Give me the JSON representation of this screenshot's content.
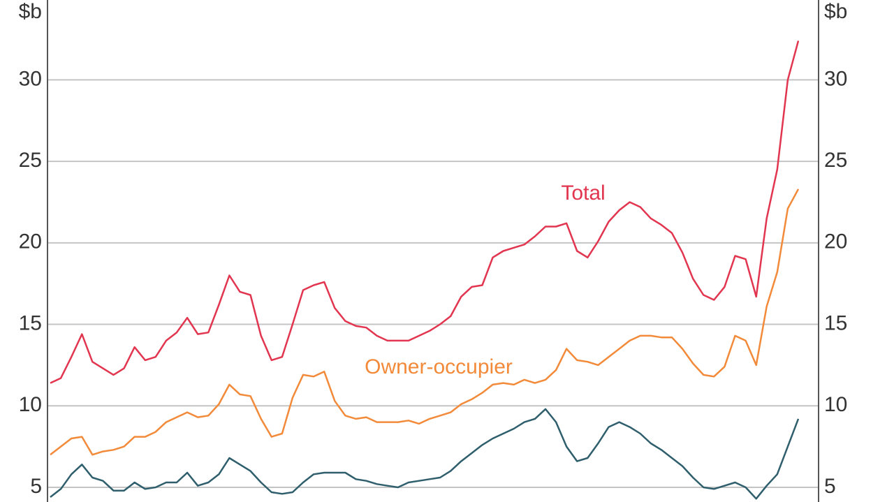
{
  "chart_data": {
    "type": "line",
    "y_unit": "$b",
    "ylim": [
      4.1,
      34.9
    ],
    "yticks": [
      5,
      10,
      15,
      20,
      25,
      30
    ],
    "grid": true,
    "series": [
      {
        "name": "Total",
        "color": "#e2354f",
        "values": [
          11.4,
          11.7,
          13.0,
          14.4,
          12.7,
          12.3,
          11.9,
          12.3,
          13.6,
          12.8,
          13.0,
          14.0,
          14.5,
          15.4,
          14.4,
          14.5,
          16.2,
          18.0,
          17.0,
          16.8,
          14.3,
          12.8,
          13.0,
          15.0,
          17.1,
          17.4,
          17.6,
          16.0,
          15.2,
          14.9,
          14.8,
          14.3,
          14.0,
          14.0,
          14.0,
          14.3,
          14.6,
          15.0,
          15.5,
          16.7,
          17.3,
          17.4,
          19.1,
          19.5,
          19.7,
          19.9,
          20.4,
          21.0,
          21.0,
          21.2,
          19.5,
          19.1,
          20.1,
          21.3,
          22.0,
          22.5,
          22.2,
          21.5,
          21.1,
          20.6,
          19.4,
          17.8,
          16.8,
          16.5,
          17.3,
          19.2,
          19.0,
          16.7,
          21.5,
          24.5,
          30.0,
          32.4
        ]
      },
      {
        "name": "Owner-occupier",
        "color": "#f28a3a",
        "values": [
          7.0,
          7.5,
          8.0,
          8.1,
          7.0,
          7.2,
          7.3,
          7.5,
          8.1,
          8.1,
          8.4,
          9.0,
          9.3,
          9.6,
          9.3,
          9.4,
          10.1,
          11.3,
          10.7,
          10.6,
          9.2,
          8.1,
          8.3,
          10.5,
          11.9,
          11.8,
          12.1,
          10.3,
          9.4,
          9.2,
          9.3,
          9.0,
          9.0,
          9.0,
          9.1,
          8.9,
          9.2,
          9.4,
          9.6,
          10.1,
          10.4,
          10.8,
          11.3,
          11.4,
          11.3,
          11.6,
          11.4,
          11.6,
          12.2,
          13.5,
          12.8,
          12.7,
          12.5,
          13.0,
          13.5,
          14.0,
          14.3,
          14.3,
          14.2,
          14.2,
          13.5,
          12.6,
          11.9,
          11.8,
          12.4,
          14.3,
          14.0,
          12.5,
          16.1,
          18.2,
          22.1,
          23.3
        ]
      },
      {
        "color": "#2f5e6c",
        "values": [
          4.4,
          4.9,
          5.8,
          6.4,
          5.6,
          5.4,
          4.8,
          4.8,
          5.3,
          4.9,
          5.0,
          5.3,
          5.3,
          5.9,
          5.1,
          5.3,
          5.8,
          6.8,
          6.4,
          6.0,
          5.3,
          4.7,
          4.6,
          4.7,
          5.3,
          5.8,
          5.9,
          5.9,
          5.9,
          5.5,
          5.4,
          5.2,
          5.1,
          5.0,
          5.3,
          5.4,
          5.5,
          5.6,
          6.0,
          6.6,
          7.1,
          7.6,
          8.0,
          8.3,
          8.6,
          9.0,
          9.2,
          9.8,
          9.0,
          7.5,
          6.6,
          6.8,
          7.7,
          8.7,
          9.0,
          8.7,
          8.3,
          7.7,
          7.3,
          6.8,
          6.3,
          5.6,
          5.0,
          4.9,
          5.1,
          5.3,
          5.0,
          4.3,
          5.1,
          5.8,
          7.5,
          9.2
        ]
      }
    ]
  }
}
